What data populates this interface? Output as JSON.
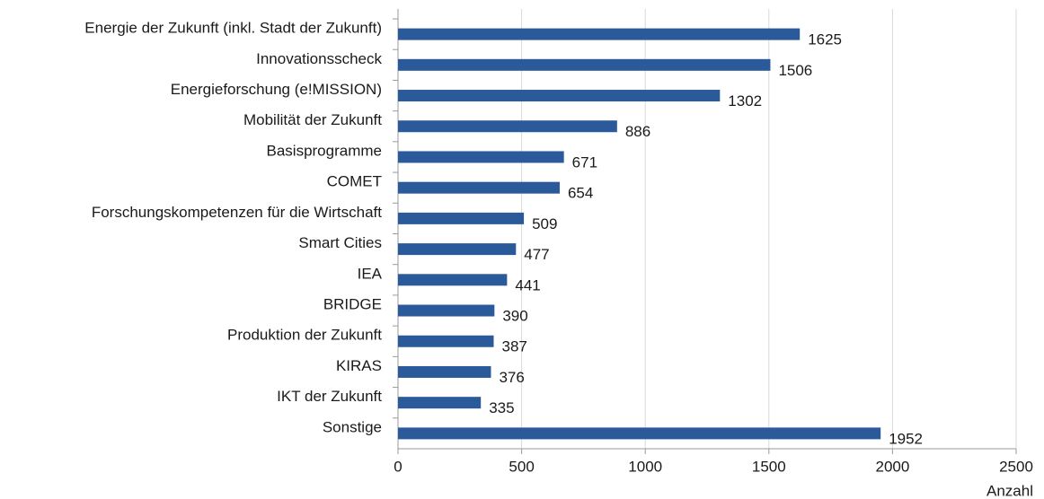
{
  "chart_data": {
    "type": "bar",
    "orientation": "horizontal",
    "categories": [
      "Energie der Zukunft (inkl. Stadt der Zukunft)",
      "Innovationsscheck",
      "Energieforschung (e!MISSION)",
      "Mobilität der Zukunft",
      "Basisprogramme",
      "COMET",
      "Forschungskompetenzen für die Wirtschaft",
      "Smart Cities",
      "IEA",
      "BRIDGE",
      "Produktion der Zukunft",
      "KIRAS",
      "IKT der Zukunft",
      "Sonstige"
    ],
    "values": [
      1625,
      1506,
      1302,
      886,
      671,
      654,
      509,
      477,
      441,
      390,
      387,
      376,
      335,
      1952
    ],
    "color": "#2b5a9b",
    "xlabel": "Anzahl",
    "xlim": [
      0,
      2500
    ],
    "xticks": [
      0,
      500,
      1000,
      1500,
      2000,
      2500
    ],
    "grid": true
  }
}
